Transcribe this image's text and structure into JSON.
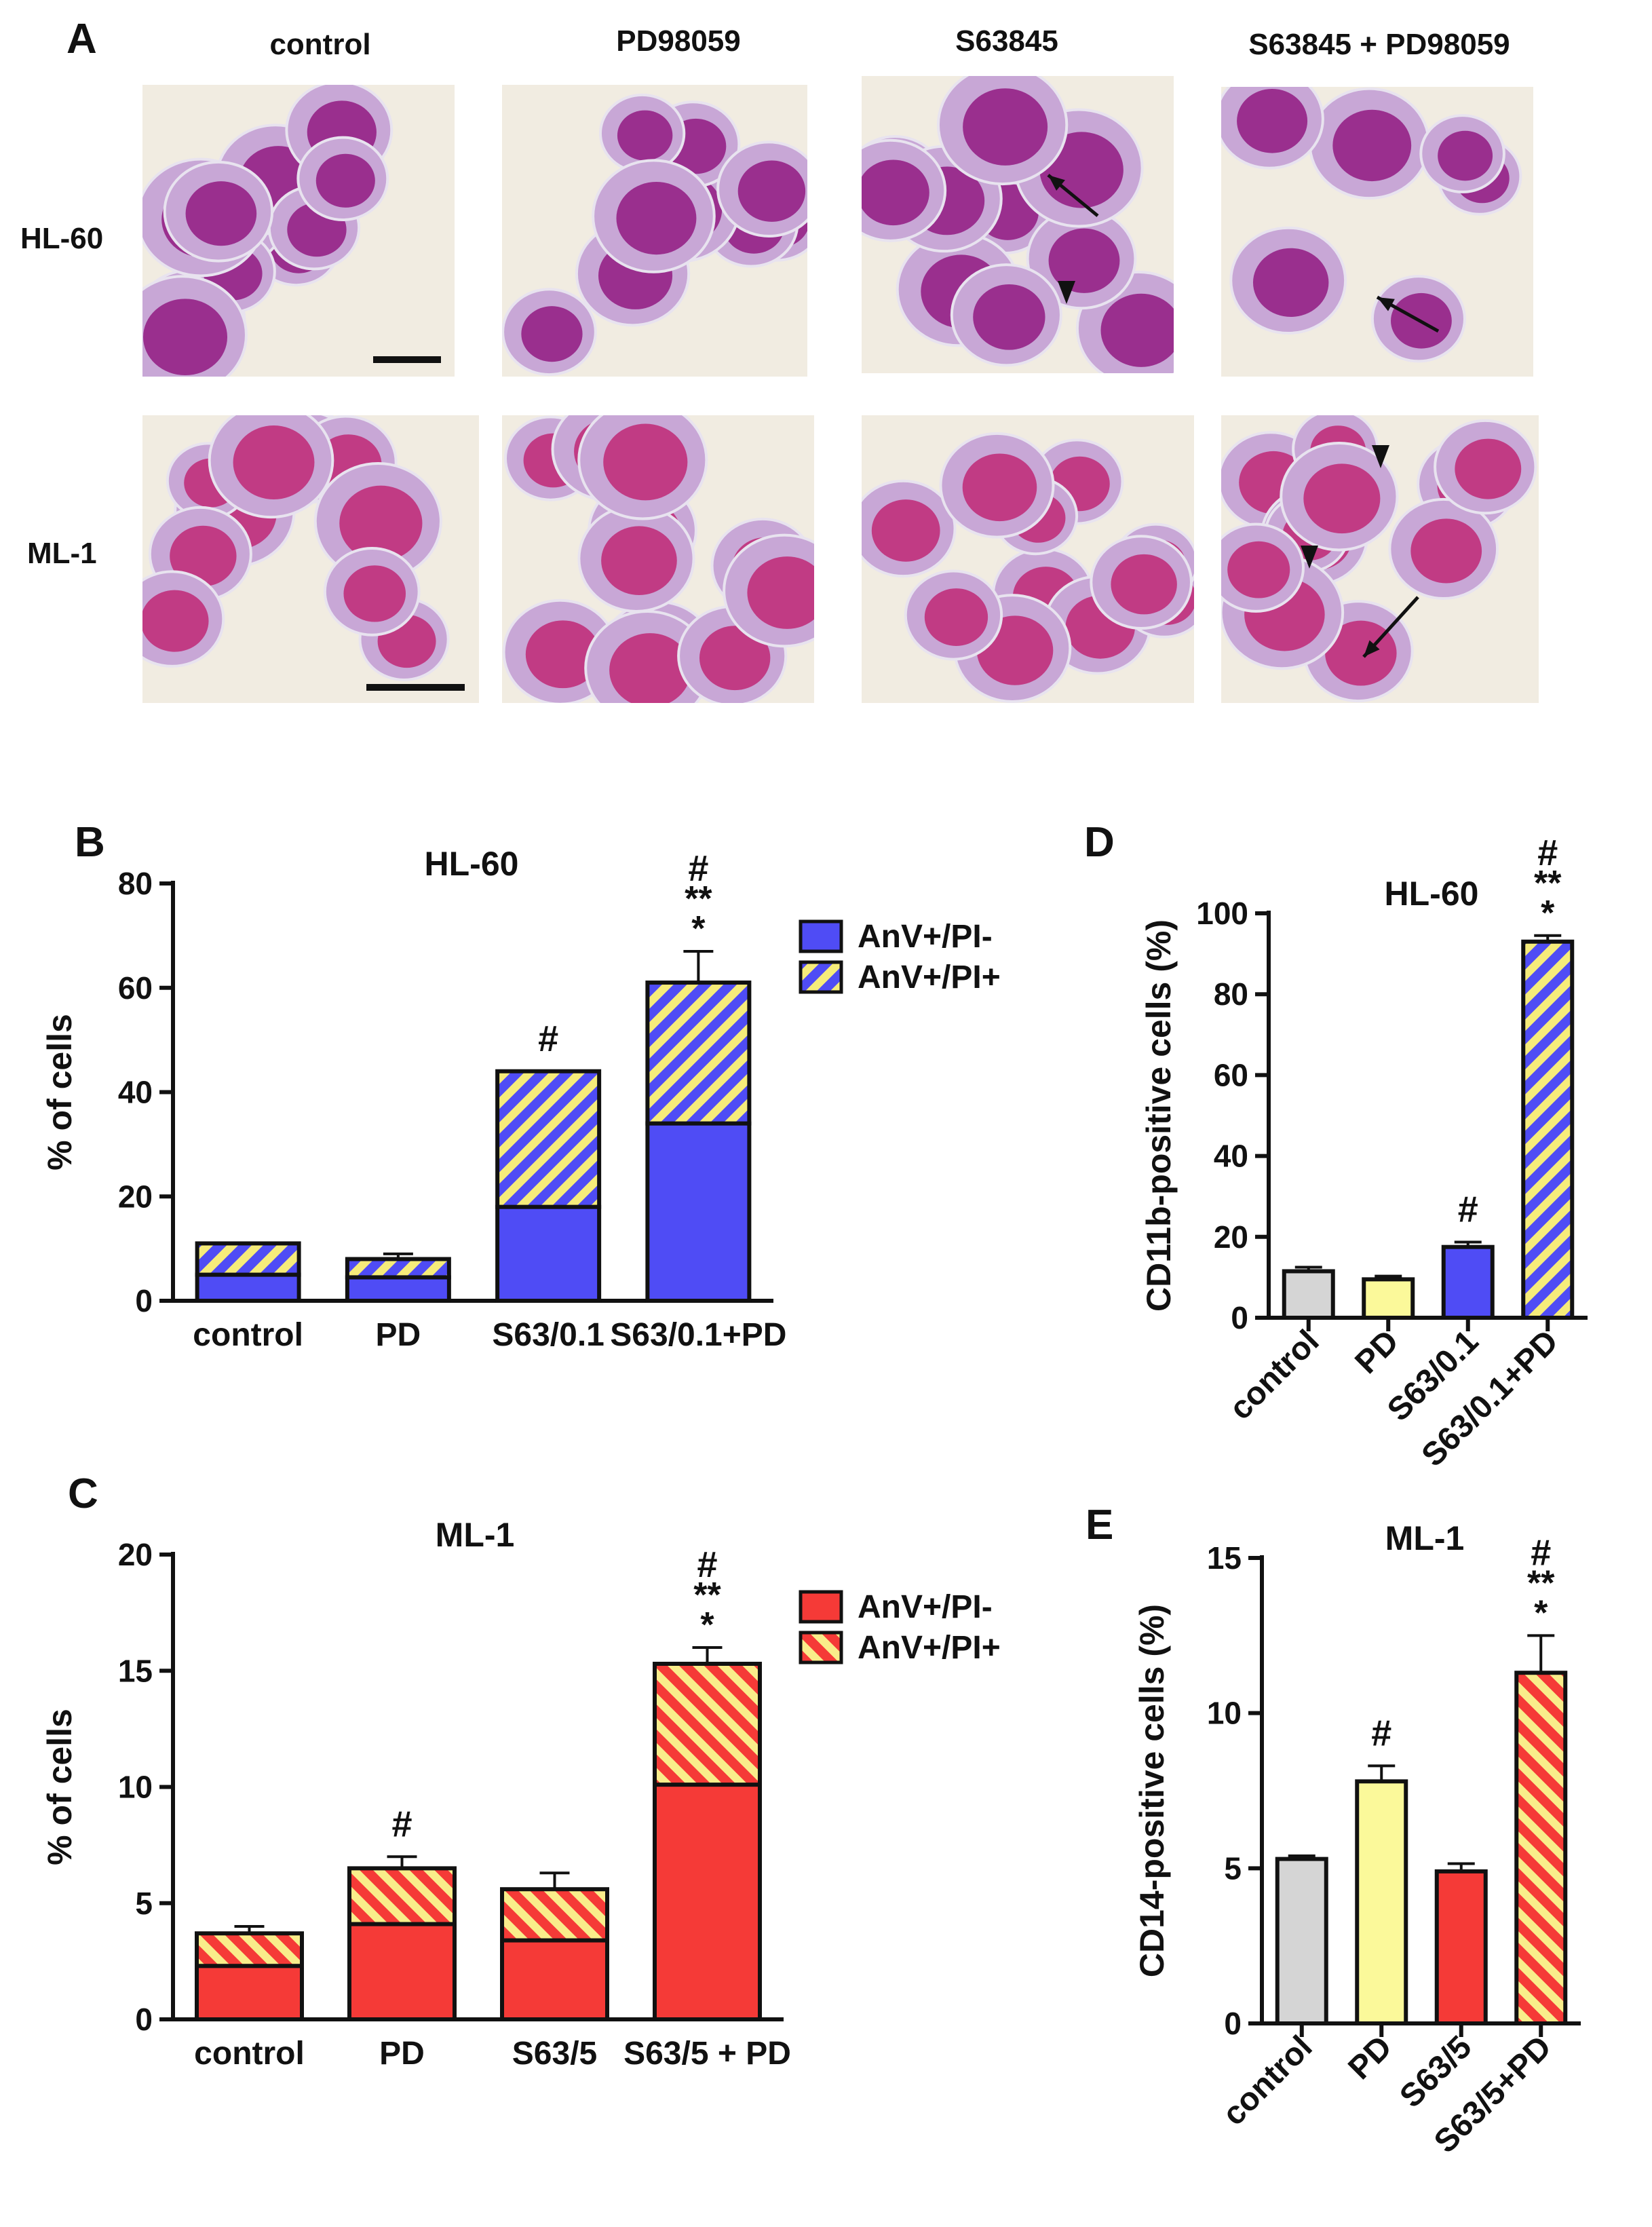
{
  "figure": {
    "panel_labels": {
      "a": "A",
      "b": "B",
      "c": "C",
      "d": "D",
      "e": "E"
    }
  },
  "micrographs": {
    "columns": [
      "control",
      "PD98059",
      "S63845",
      "S63845 + PD98059"
    ],
    "rows": [
      "HL-60",
      "ML-1"
    ],
    "colors": {
      "background": "#f1ece1",
      "cell_body": "#c8a7d6",
      "nucleus": "#9a2f8e",
      "nucleus_ml1": "#c13b84"
    }
  },
  "chart_data": [
    {
      "id": "B",
      "type": "bar",
      "stacked": true,
      "title": "HL-60",
      "ylabel": "% of cells",
      "xlabel": "",
      "ylim": [
        0,
        80
      ],
      "yticks": [
        0,
        20,
        40,
        60,
        80
      ],
      "categories": [
        "control",
        "PD",
        "S63/0.1",
        "S63/0.1+PD"
      ],
      "series": [
        {
          "name": "AnV+/PI-",
          "values": [
            5,
            4.5,
            18,
            34
          ],
          "errors": [
            0,
            0,
            3.5,
            3
          ],
          "fill": "solid",
          "color": "#4f4cf5"
        },
        {
          "name": "AnV+/PI+",
          "values": [
            6,
            3.5,
            26,
            27
          ],
          "errors": [
            0,
            1,
            0,
            6
          ],
          "fill": "hatch",
          "color": "#4f4cf5",
          "hatch_color": "#f6ec7a"
        }
      ],
      "annotations": [
        {
          "category": "S63/0.1",
          "lines": [
            "#"
          ]
        },
        {
          "category": "S63/0.1+PD",
          "lines": [
            "#",
            "**",
            "*"
          ]
        }
      ],
      "legend": "right"
    },
    {
      "id": "C",
      "type": "bar",
      "stacked": true,
      "title": "ML-1",
      "ylabel": "% of cells",
      "xlabel": "",
      "ylim": [
        0,
        20
      ],
      "yticks": [
        0,
        5,
        10,
        15,
        20
      ],
      "categories": [
        "control",
        "PD",
        "S63/5",
        "S63/5 + PD"
      ],
      "series": [
        {
          "name": "AnV+/PI-",
          "values": [
            2.3,
            4.1,
            3.4,
            10.1
          ],
          "errors": [
            0,
            0.8,
            0.7,
            0.8
          ],
          "fill": "solid",
          "color": "#f53a37"
        },
        {
          "name": "AnV+/PI+",
          "values": [
            1.4,
            2.4,
            2.2,
            5.2
          ],
          "errors": [
            0.3,
            0.5,
            0.7,
            0.7
          ],
          "fill": "hatch",
          "color": "#f53a37",
          "hatch_color": "#f9ed8a"
        }
      ],
      "annotations": [
        {
          "category": "PD",
          "lines": [
            "#"
          ]
        },
        {
          "category": "S63/5 + PD",
          "lines": [
            "#",
            "**",
            "*"
          ]
        }
      ],
      "legend": "right"
    },
    {
      "id": "D",
      "type": "bar",
      "stacked": false,
      "title": "HL-60",
      "ylabel": "CD11b-positive cells (%)",
      "xlabel": "",
      "ylim": [
        0,
        100
      ],
      "yticks": [
        0,
        20,
        40,
        60,
        80,
        100
      ],
      "categories": [
        "control",
        "PD",
        "S63/0.1",
        "S63/0.1+PD"
      ],
      "values": [
        11.5,
        9.5,
        17.5,
        93
      ],
      "errors": [
        1,
        0.8,
        1.2,
        1.5
      ],
      "bar_styles": [
        {
          "fill": "solid",
          "color": "#d5d5d5"
        },
        {
          "fill": "solid",
          "color": "#fbf99a"
        },
        {
          "fill": "solid",
          "color": "#4f4cf5"
        },
        {
          "fill": "hatch",
          "color": "#4f4cf5",
          "hatch_color": "#f6ec7a"
        }
      ],
      "annotations": [
        {
          "category": "S63/0.1",
          "lines": [
            "#"
          ]
        },
        {
          "category": "S63/0.1+PD",
          "lines": [
            "#",
            "**",
            "*"
          ]
        }
      ],
      "tick_rotation": 45
    },
    {
      "id": "E",
      "type": "bar",
      "stacked": false,
      "title": "ML-1",
      "ylabel": "CD14-positive cells (%)",
      "xlabel": "",
      "ylim": [
        0,
        15
      ],
      "yticks": [
        0,
        5,
        10,
        15
      ],
      "categories": [
        "control",
        "PD",
        "S63/5",
        "S63/5+PD"
      ],
      "values": [
        5.3,
        7.8,
        4.9,
        11.3
      ],
      "errors": [
        0.1,
        0.5,
        0.25,
        1.2
      ],
      "bar_styles": [
        {
          "fill": "solid",
          "color": "#d5d5d5"
        },
        {
          "fill": "solid",
          "color": "#fbf99a"
        },
        {
          "fill": "solid",
          "color": "#f53a37"
        },
        {
          "fill": "hatch",
          "color": "#f53a37",
          "hatch_color": "#f9ed8a"
        }
      ],
      "annotations": [
        {
          "category": "PD",
          "lines": [
            "#"
          ]
        },
        {
          "category": "S63/5+PD",
          "lines": [
            "#",
            "**",
            "*"
          ]
        }
      ],
      "tick_rotation": 45
    }
  ]
}
